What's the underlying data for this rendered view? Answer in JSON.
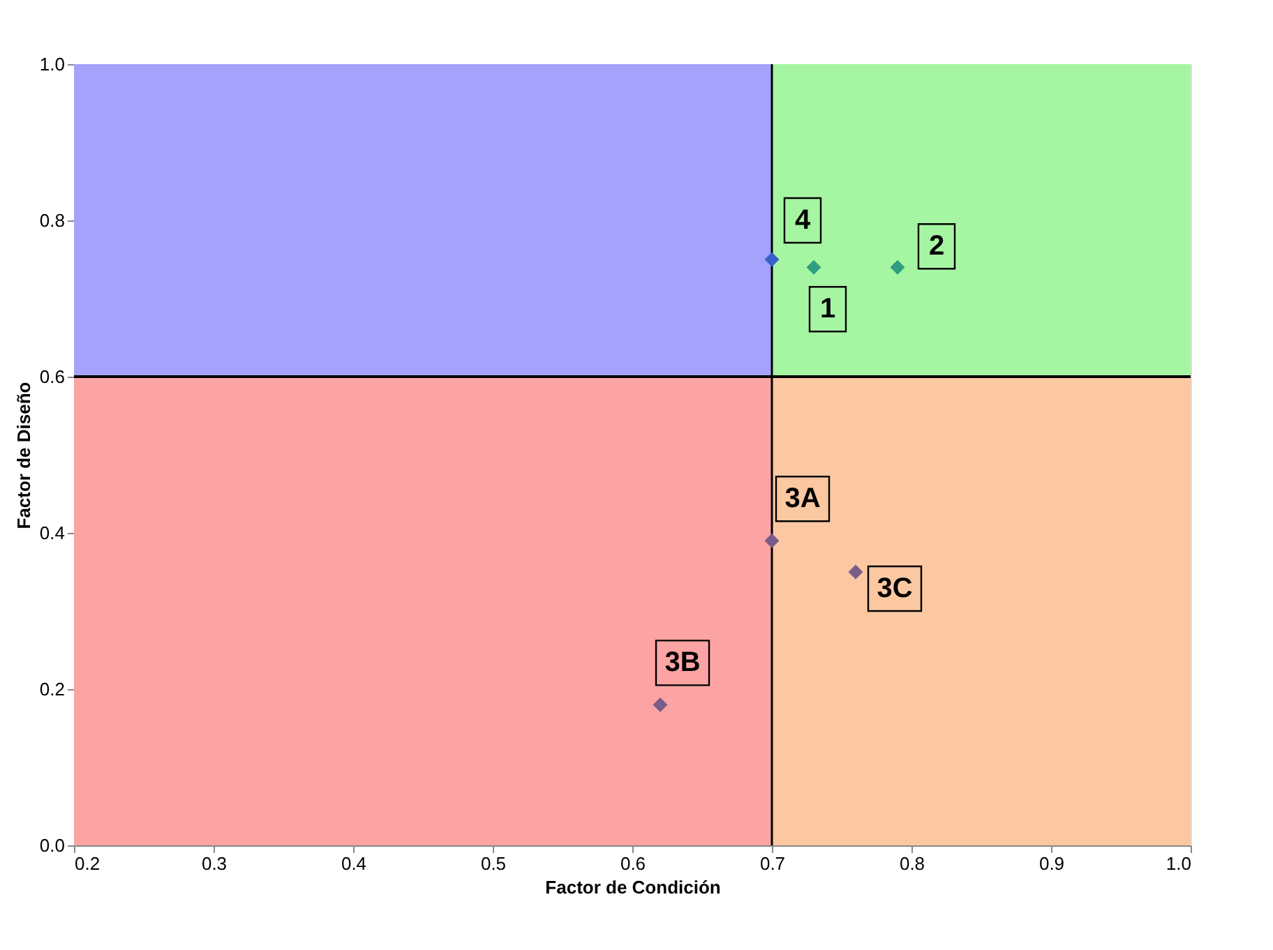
{
  "chart_data": {
    "type": "scatter",
    "xlabel": "Factor de Condición",
    "ylabel": "Factor de Diseño",
    "xlim": [
      0.2,
      1.0
    ],
    "xticks": [
      0.2,
      0.3,
      0.4,
      0.5,
      0.6,
      0.7,
      0.8,
      0.9,
      {
        "value": 1.0,
        "label": "1.0"
      }
    ],
    "ylim": [
      0.0,
      1.0
    ],
    "yticks": [
      {
        "value": 0.0,
        "label": "0.0"
      },
      0.2,
      0.4,
      0.6,
      0.8,
      {
        "value": 1.0,
        "label": "1.0"
      }
    ],
    "marker": "diamond",
    "ref_lines": [
      {
        "axis": "x",
        "value": 0.7,
        "color": "#000000"
      },
      {
        "axis": "y",
        "value": 0.6,
        "color": "#000000"
      }
    ],
    "series": [
      {
        "name": "4",
        "color": "#3a5fcd",
        "x": [
          0.7
        ],
        "values": [
          0.75
        ]
      },
      {
        "name": "1",
        "color": "#2e9e7e",
        "x": [
          0.73
        ],
        "values": [
          0.74
        ]
      },
      {
        "name": "2",
        "color": "#2e9e7e",
        "x": [
          0.79
        ],
        "values": [
          0.74
        ]
      },
      {
        "name": "3A",
        "color": "#7a5c8a",
        "x": [
          0.7
        ],
        "values": [
          0.39
        ]
      },
      {
        "name": "3C",
        "color": "#7a5c8a",
        "x": [
          0.76
        ],
        "values": [
          0.35
        ]
      },
      {
        "name": "3B",
        "color": "#7a5c8a",
        "x": [
          0.62
        ],
        "values": [
          0.18
        ]
      }
    ]
  }
}
